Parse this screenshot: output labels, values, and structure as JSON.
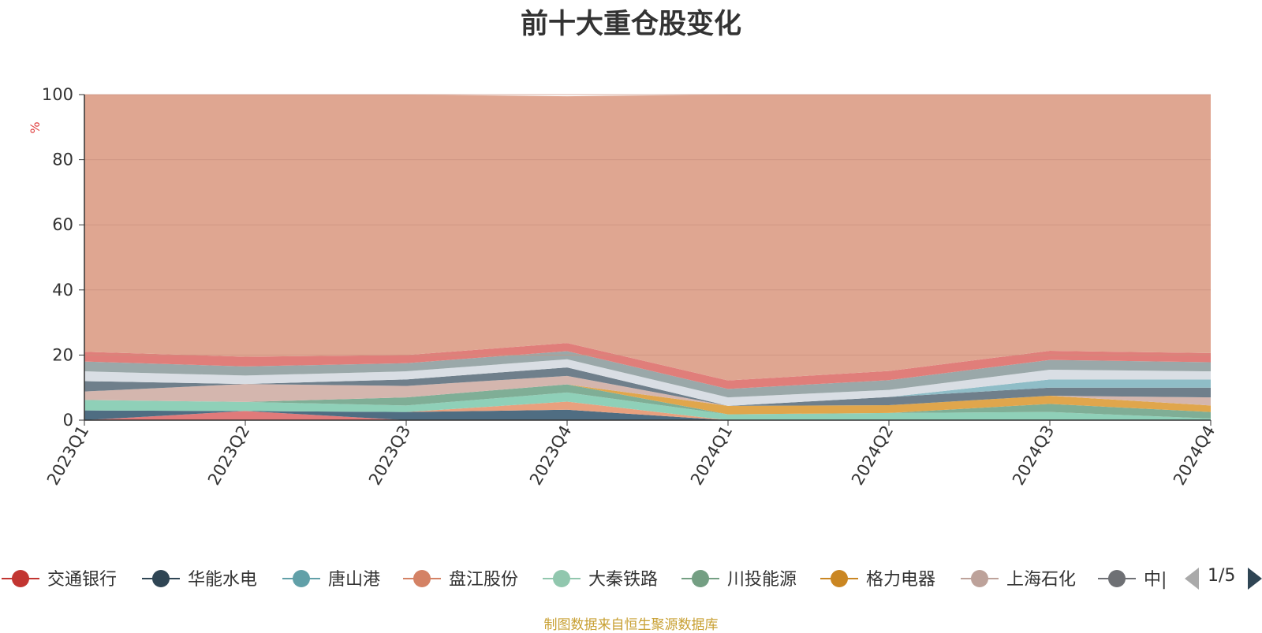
{
  "chart_data": {
    "type": "area",
    "stacked": true,
    "title": "前十大重仓股变化",
    "ylabel": "%",
    "ylim": [
      0,
      100
    ],
    "yticks": [
      0,
      20,
      40,
      60,
      80,
      100
    ],
    "categories": [
      "2023Q1",
      "2023Q2",
      "2023Q3",
      "2023Q4",
      "2024Q1",
      "2024Q2",
      "2024Q3",
      "2024Q4"
    ],
    "colors": [
      "#e07a7a",
      "#4f6d82",
      "#e8a07e",
      "#8fd0b8",
      "#7fae96",
      "#e0a64c",
      "#d4b6ae",
      "#6f7f8b",
      "#8fbdc7",
      "#d9dee4",
      "#9aa8a9",
      "#e07e7a",
      "#dfa691"
    ],
    "series": [
      {
        "values": [
          0.0,
          2.8,
          0.0,
          0.0,
          0.0,
          0.0,
          0.0,
          0.0
        ]
      },
      {
        "values": [
          3.0,
          0.0,
          2.5,
          3.2,
          0.0,
          0.0,
          0.0,
          0.0
        ]
      },
      {
        "values": [
          0.0,
          0.0,
          0.0,
          2.5,
          0.0,
          0.0,
          0.0,
          0.0
        ]
      },
      {
        "values": [
          3.2,
          2.8,
          2.0,
          2.8,
          1.8,
          2.2,
          2.5,
          0.5
        ]
      },
      {
        "values": [
          0.0,
          0.0,
          2.5,
          2.5,
          0.0,
          0.0,
          2.5,
          2.0
        ]
      },
      {
        "values": [
          0.0,
          0.0,
          0.0,
          0.0,
          2.6,
          2.4,
          2.5,
          2.0
        ]
      },
      {
        "values": [
          2.6,
          5.5,
          3.5,
          2.6,
          0.0,
          0.0,
          0.0,
          2.5
        ]
      },
      {
        "values": [
          3.2,
          0.0,
          2.0,
          2.6,
          0.0,
          2.5,
          2.5,
          3.0
        ]
      },
      {
        "values": [
          0.0,
          0.0,
          0.0,
          0.0,
          0.0,
          0.0,
          2.5,
          2.5
        ]
      },
      {
        "values": [
          3.0,
          2.6,
          2.5,
          2.5,
          2.6,
          2.2,
          3.0,
          2.5
        ]
      },
      {
        "values": [
          3.0,
          2.8,
          2.5,
          2.5,
          2.6,
          3.0,
          3.0,
          2.8
        ]
      },
      {
        "values": [
          3.0,
          3.0,
          2.5,
          2.5,
          2.6,
          2.8,
          2.8,
          2.8
        ]
      },
      {
        "values": [
          79.0,
          80.5,
          80.0,
          75.8,
          87.8,
          84.9,
          78.7,
          79.4
        ]
      }
    ],
    "legend": {
      "placement": "bottom",
      "items": [
        {
          "name": "交通银行",
          "color": "#c23531"
        },
        {
          "name": "华能水电",
          "color": "#2f4554"
        },
        {
          "name": "唐山港",
          "color": "#61a0a8"
        },
        {
          "name": "盘江股份",
          "color": "#d48265"
        },
        {
          "name": "大秦铁路",
          "color": "#91c7ae"
        },
        {
          "name": "川投能源",
          "color": "#749f83"
        },
        {
          "name": "格力电器",
          "color": "#ca8622"
        },
        {
          "name": "上海石化",
          "color": "#bda29a"
        },
        {
          "name": "中|",
          "color": "#6e7074"
        }
      ],
      "page": "1/5"
    }
  },
  "footer": {
    "source": "制图数据来自恒生聚源数据库"
  }
}
